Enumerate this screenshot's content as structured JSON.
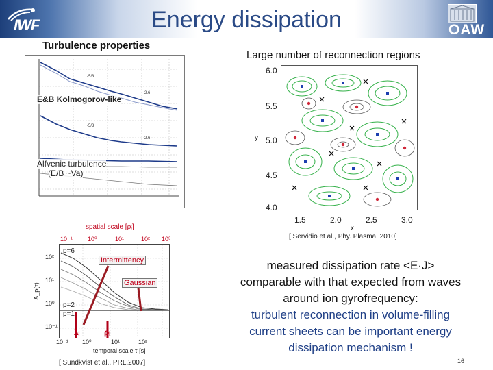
{
  "header": {
    "title": "Energy dissipation",
    "logo_left": "IWF",
    "logo_right": "OAW"
  },
  "left_panel": {
    "subtitle": "Turbulence properties",
    "spectra": {
      "label_kolmogorov": "E&B Kolmogorov-like",
      "label_alfvenic_line1": "Alfvenic turbulence",
      "label_alfvenic_line2": "(E/B ~Va)",
      "slope_labels": [
        "-5/3",
        "-2.6",
        "-5/3",
        "-2.6"
      ]
    },
    "structure_function": {
      "top_axis_label": "spatial scale [ρᵢ]",
      "bottom_axis_label": "temporal scale τ [s]",
      "top_ticks": [
        "10⁻¹",
        "10⁰",
        "10¹",
        "10²",
        "10³"
      ],
      "bottom_ticks": [
        "10⁻¹",
        "10⁰",
        "10¹",
        "10²"
      ],
      "y_ticks": [
        "10²",
        "10¹",
        "10⁰",
        "10⁻¹"
      ],
      "y_axis_label": "A_p(τ)",
      "curve_labels": [
        "p=6",
        "p=2",
        "p=1"
      ],
      "annot_intermittency": "Intermittency",
      "annot_gaussian": "Gaussian",
      "lambda_label": "λᵢ",
      "rho_label": "ρᵢ"
    },
    "citation": "[ Sundkvist et al., PRL,2007]"
  },
  "right_panel": {
    "subtitle": "Large number of reconnection regions",
    "citation": "[ Servidio et al., Phy. Plasma, 2010]",
    "y_ticks": [
      "6.0",
      "5.5",
      "5.0",
      "4.5",
      "4.0"
    ],
    "x_ticks": [
      "1.5",
      "2.0",
      "2.5",
      "3.0"
    ],
    "x_label": "x",
    "y_label": "y"
  },
  "body": {
    "line1": "measured dissipation rate <E·J>",
    "line2": "comparable with that expected from waves",
    "line3": "around ion gyrofrequency:",
    "line4": "turbulent reconnection in volume-filling",
    "line5": "current sheets can be important energy",
    "line6": "dissipation mechanism !"
  },
  "footer": {
    "page_number": "16"
  },
  "colors": {
    "title": "#2a4a86",
    "accent": "#1f3f86",
    "red": "#c0001a",
    "green": "#1fae3a"
  }
}
